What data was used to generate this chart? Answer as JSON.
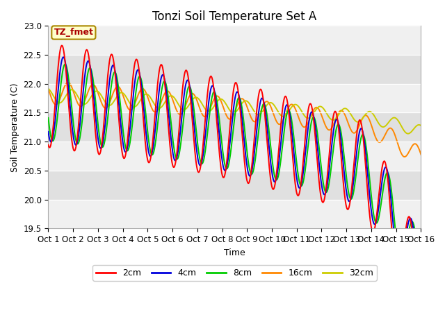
{
  "title": "Tonzi Soil Temperature Set A",
  "xlabel": "Time",
  "ylabel": "Soil Temperature (C)",
  "ylim": [
    19.5,
    23.0
  ],
  "xlim": [
    0,
    15
  ],
  "xtick_labels": [
    "Oct 1",
    "Oct 2",
    "Oct 3",
    "Oct 4",
    "Oct 5",
    "Oct 6",
    "Oct 7",
    "Oct 8",
    "Oct 9",
    "Oct 10",
    "Oct 11",
    "Oct 12",
    "Oct 13",
    "Oct 14",
    "Oct 15",
    "Oct 16"
  ],
  "colors": {
    "2cm": "#ff0000",
    "4cm": "#0000dd",
    "8cm": "#00cc00",
    "16cm": "#ff8800",
    "32cm": "#cccc00"
  },
  "annotation_text": "TZ_fmet",
  "annotation_color": "#aa0000",
  "annotation_bg": "#ffffcc",
  "annotation_border": "#aa8800",
  "fig_bg": "#ffffff",
  "plot_bg_light": "#f0f0f0",
  "plot_bg_dark": "#e0e0e0",
  "grid_color": "#ffffff",
  "title_fontsize": 12,
  "label_fontsize": 9,
  "tick_fontsize": 8.5
}
